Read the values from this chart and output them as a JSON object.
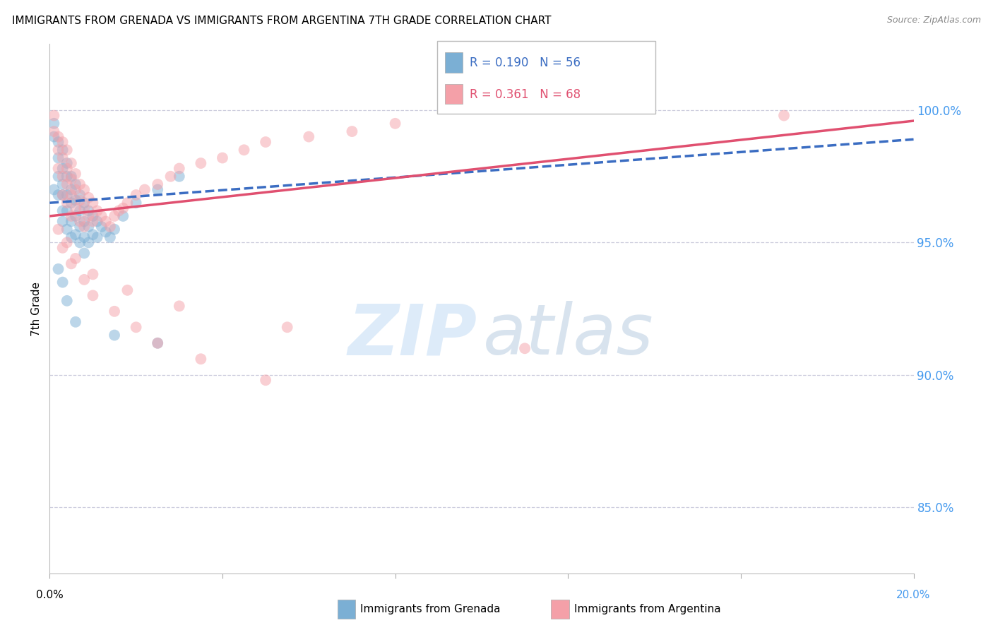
{
  "title": "IMMIGRANTS FROM GRENADA VS IMMIGRANTS FROM ARGENTINA 7TH GRADE CORRELATION CHART",
  "source": "Source: ZipAtlas.com",
  "ylabel": "7th Grade",
  "ylabel_right_ticks": [
    "100.0%",
    "95.0%",
    "90.0%",
    "85.0%"
  ],
  "ylabel_right_values": [
    1.0,
    0.95,
    0.9,
    0.85
  ],
  "x_min": 0.0,
  "x_max": 0.2,
  "y_min": 0.825,
  "y_max": 1.025,
  "grenada_R": 0.19,
  "grenada_N": 56,
  "argentina_R": 0.361,
  "argentina_N": 68,
  "grenada_color": "#7BAFD4",
  "argentina_color": "#F4A0A8",
  "grenada_line_color": "#3B6DC2",
  "argentina_line_color": "#E05070",
  "background_color": "#FFFFFF",
  "grenada_x": [
    0.001,
    0.001,
    0.001,
    0.002,
    0.002,
    0.002,
    0.002,
    0.003,
    0.003,
    0.003,
    0.003,
    0.003,
    0.003,
    0.004,
    0.004,
    0.004,
    0.004,
    0.004,
    0.005,
    0.005,
    0.005,
    0.005,
    0.005,
    0.006,
    0.006,
    0.006,
    0.006,
    0.007,
    0.007,
    0.007,
    0.007,
    0.008,
    0.008,
    0.008,
    0.008,
    0.009,
    0.009,
    0.009,
    0.01,
    0.01,
    0.011,
    0.011,
    0.012,
    0.013,
    0.014,
    0.015,
    0.017,
    0.02,
    0.025,
    0.03,
    0.002,
    0.003,
    0.004,
    0.006,
    0.015,
    0.025
  ],
  "grenada_y": [
    0.995,
    0.99,
    0.97,
    0.988,
    0.982,
    0.975,
    0.968,
    0.985,
    0.978,
    0.972,
    0.968,
    0.962,
    0.958,
    0.98,
    0.975,
    0.968,
    0.962,
    0.955,
    0.975,
    0.97,
    0.965,
    0.958,
    0.952,
    0.972,
    0.966,
    0.96,
    0.953,
    0.968,
    0.962,
    0.956,
    0.95,
    0.965,
    0.958,
    0.952,
    0.946,
    0.962,
    0.956,
    0.95,
    0.96,
    0.953,
    0.958,
    0.952,
    0.956,
    0.954,
    0.952,
    0.955,
    0.96,
    0.965,
    0.97,
    0.975,
    0.94,
    0.935,
    0.928,
    0.92,
    0.915,
    0.912
  ],
  "argentina_x": [
    0.001,
    0.001,
    0.002,
    0.002,
    0.002,
    0.003,
    0.003,
    0.003,
    0.003,
    0.004,
    0.004,
    0.004,
    0.004,
    0.005,
    0.005,
    0.005,
    0.005,
    0.006,
    0.006,
    0.006,
    0.007,
    0.007,
    0.007,
    0.008,
    0.008,
    0.008,
    0.009,
    0.009,
    0.01,
    0.01,
    0.011,
    0.012,
    0.013,
    0.014,
    0.015,
    0.016,
    0.017,
    0.018,
    0.02,
    0.022,
    0.025,
    0.028,
    0.03,
    0.035,
    0.04,
    0.045,
    0.05,
    0.06,
    0.07,
    0.08,
    0.003,
    0.005,
    0.008,
    0.01,
    0.015,
    0.02,
    0.025,
    0.035,
    0.05,
    0.17,
    0.002,
    0.004,
    0.006,
    0.01,
    0.018,
    0.03,
    0.055,
    0.11
  ],
  "argentina_y": [
    0.998,
    0.992,
    0.99,
    0.985,
    0.978,
    0.988,
    0.982,
    0.975,
    0.968,
    0.985,
    0.978,
    0.972,
    0.965,
    0.98,
    0.974,
    0.968,
    0.96,
    0.976,
    0.97,
    0.963,
    0.972,
    0.966,
    0.958,
    0.97,
    0.963,
    0.956,
    0.967,
    0.96,
    0.965,
    0.958,
    0.962,
    0.96,
    0.958,
    0.956,
    0.96,
    0.962,
    0.963,
    0.965,
    0.968,
    0.97,
    0.972,
    0.975,
    0.978,
    0.98,
    0.982,
    0.985,
    0.988,
    0.99,
    0.992,
    0.995,
    0.948,
    0.942,
    0.936,
    0.93,
    0.924,
    0.918,
    0.912,
    0.906,
    0.898,
    0.998,
    0.955,
    0.95,
    0.944,
    0.938,
    0.932,
    0.926,
    0.918,
    0.91
  ]
}
